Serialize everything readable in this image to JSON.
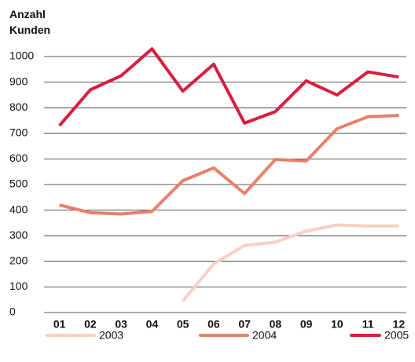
{
  "chart_data": {
    "type": "line",
    "title": "Anzahl Kunden",
    "categories": [
      "01",
      "02",
      "03",
      "04",
      "05",
      "06",
      "07",
      "08",
      "09",
      "10",
      "11",
      "12"
    ],
    "series": [
      {
        "name": "2003",
        "color": "#f7cfc4",
        "values": [
          null,
          null,
          null,
          null,
          45,
          190,
          262,
          275,
          318,
          342,
          338,
          338
        ]
      },
      {
        "name": "2004",
        "color": "#e8806a",
        "values": [
          420,
          390,
          385,
          395,
          515,
          565,
          465,
          598,
          592,
          718,
          765,
          770
        ]
      },
      {
        "name": "2005",
        "color": "#d81e3f",
        "values": [
          730,
          870,
          925,
          1030,
          865,
          970,
          740,
          785,
          905,
          850,
          940,
          920
        ]
      }
    ],
    "ylim": [
      0,
      1000
    ],
    "yticks": [
      0,
      100,
      200,
      300,
      400,
      500,
      600,
      700,
      800,
      900,
      1000
    ],
    "grid": true,
    "legend": "bottom"
  }
}
